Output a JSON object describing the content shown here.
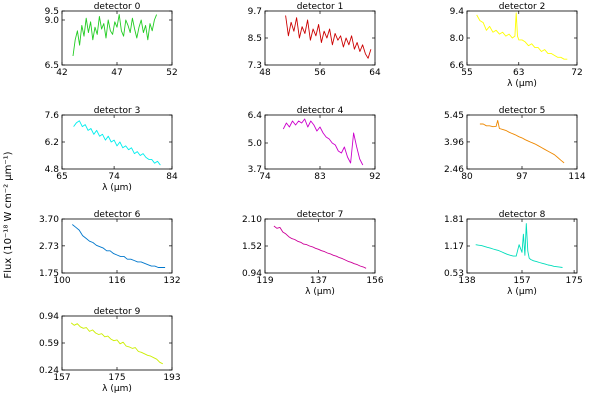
{
  "figure": {
    "ylabel": "Flux (10⁻¹⁸ W cm⁻² µm⁻¹)"
  },
  "chart_data": [
    {
      "type": "line",
      "title": "detector 0",
      "xlabel": "",
      "xlim": [
        42,
        52
      ],
      "ylim": [
        6.5,
        9.5
      ],
      "x_ticks": [
        "42",
        "47",
        "52"
      ],
      "y_ticks": [
        "6.5",
        "9.0",
        "9.5"
      ],
      "grid": false,
      "color": "#22cc22",
      "series": [
        {
          "x": [
            43.0,
            43.2,
            43.4,
            43.6,
            43.8,
            44.0,
            44.2,
            44.4,
            44.6,
            44.8,
            45.0,
            45.2,
            45.4,
            45.6,
            45.8,
            46.0,
            46.2,
            46.4,
            46.6,
            46.8,
            47.0,
            47.2,
            47.4,
            47.6,
            47.8,
            48.0,
            48.2,
            48.4,
            48.6,
            48.8,
            49.0,
            49.2,
            49.4,
            49.6,
            49.8,
            50.0,
            50.2,
            50.4,
            50.6
          ],
          "y": [
            7.0,
            7.9,
            8.4,
            7.6,
            8.7,
            8.1,
            9.1,
            8.3,
            8.9,
            7.9,
            8.6,
            8.2,
            9.2,
            8.5,
            8.8,
            8.0,
            9.0,
            8.4,
            8.2,
            8.9,
            8.6,
            9.3,
            8.4,
            8.1,
            9.0,
            8.7,
            8.3,
            9.1,
            8.5,
            8.0,
            8.6,
            9.0,
            8.3,
            8.7,
            7.9,
            8.8,
            8.4,
            9.0,
            9.3
          ]
        }
      ]
    },
    {
      "type": "line",
      "title": "detector 1",
      "xlabel": "",
      "xlim": [
        48,
        64
      ],
      "ylim": [
        7.3,
        9.7
      ],
      "x_ticks": [
        "48",
        "56",
        "64"
      ],
      "y_ticks": [
        "7.3",
        "8.5",
        "9.7"
      ],
      "grid": false,
      "color": "#cc0000",
      "series": [
        {
          "x": [
            51.0,
            51.4,
            51.8,
            52.2,
            52.6,
            53.0,
            53.4,
            53.8,
            54.2,
            54.6,
            55.0,
            55.4,
            55.8,
            56.2,
            56.6,
            57.0,
            57.4,
            57.8,
            58.2,
            58.6,
            59.0,
            59.4,
            59.8,
            60.2,
            60.6,
            61.0,
            61.4,
            61.8,
            62.2,
            62.6,
            63.0,
            63.4
          ],
          "y": [
            9.5,
            8.6,
            9.2,
            8.8,
            9.4,
            8.5,
            9.0,
            8.7,
            9.3,
            8.4,
            8.9,
            8.6,
            9.1,
            8.3,
            8.8,
            8.5,
            8.9,
            8.2,
            8.7,
            8.4,
            8.6,
            8.1,
            8.5,
            8.2,
            8.6,
            8.0,
            8.3,
            7.9,
            8.2,
            7.8,
            7.6,
            8.0
          ]
        }
      ]
    },
    {
      "type": "line",
      "title": "detector 2",
      "xlabel": "λ (µm)",
      "xlim": [
        55,
        72
      ],
      "ylim": [
        6.6,
        9.4
      ],
      "x_ticks": [
        "55",
        "63",
        "72"
      ],
      "y_ticks": [
        "6.6",
        "8.0",
        "9.4"
      ],
      "grid": false,
      "color": "#ffff00",
      "series": [
        {
          "x": [
            56.5,
            57.0,
            57.5,
            58.0,
            58.5,
            59.0,
            59.5,
            60.0,
            60.5,
            61.0,
            61.5,
            62.0,
            62.4,
            62.6,
            62.8,
            63.0,
            63.5,
            64.0,
            64.5,
            65.0,
            65.5,
            66.0,
            66.5,
            67.0,
            67.5,
            68.0,
            68.5,
            69.0,
            69.5,
            70.0,
            70.5
          ],
          "y": [
            9.2,
            8.9,
            8.8,
            8.4,
            8.6,
            8.3,
            8.4,
            8.2,
            8.3,
            8.1,
            8.2,
            8.0,
            8.1,
            9.3,
            8.1,
            7.9,
            7.9,
            7.8,
            7.6,
            7.7,
            7.5,
            7.5,
            7.3,
            7.4,
            7.2,
            7.2,
            7.1,
            7.0,
            7.0,
            6.9,
            6.9
          ]
        }
      ]
    },
    {
      "type": "line",
      "title": "detector 3",
      "xlabel": "λ (µm)",
      "xlim": [
        65,
        84
      ],
      "ylim": [
        4.8,
        7.6
      ],
      "x_ticks": [
        "65",
        "74",
        "84"
      ],
      "y_ticks": [
        "4.8",
        "6.2",
        "7.6"
      ],
      "grid": false,
      "color": "#00eeee",
      "series": [
        {
          "x": [
            67.0,
            67.5,
            68.0,
            68.5,
            69.0,
            69.5,
            70.0,
            70.5,
            71.0,
            71.5,
            72.0,
            72.5,
            73.0,
            73.5,
            74.0,
            74.5,
            75.0,
            75.5,
            76.0,
            76.5,
            77.0,
            77.5,
            78.0,
            78.5,
            79.0,
            79.5,
            80.0,
            80.5,
            81.0,
            81.5,
            82.0
          ],
          "y": [
            7.0,
            7.2,
            7.3,
            7.0,
            7.1,
            6.8,
            6.9,
            6.6,
            6.8,
            6.5,
            6.6,
            6.3,
            6.5,
            6.2,
            6.3,
            6.0,
            6.2,
            5.9,
            6.0,
            5.8,
            5.9,
            5.6,
            5.7,
            5.5,
            5.6,
            5.4,
            5.3,
            5.3,
            5.1,
            5.2,
            5.0
          ]
        }
      ]
    },
    {
      "type": "line",
      "title": "detector 4",
      "xlabel": "",
      "xlim": [
        74,
        92
      ],
      "ylim": [
        3.7,
        6.4
      ],
      "x_ticks": [
        "74",
        "83",
        "92"
      ],
      "y_ticks": [
        "3.7",
        "5.0",
        "6.4"
      ],
      "grid": false,
      "color": "#cc00cc",
      "series": [
        {
          "x": [
            77.0,
            77.5,
            78.0,
            78.5,
            79.0,
            79.5,
            80.0,
            80.5,
            81.0,
            81.5,
            82.0,
            82.5,
            83.0,
            83.5,
            84.0,
            84.5,
            85.0,
            85.5,
            86.0,
            86.5,
            87.0,
            87.5,
            88.0,
            88.5,
            89.0,
            89.5,
            90.0
          ],
          "y": [
            5.7,
            6.0,
            5.8,
            6.1,
            5.9,
            6.1,
            6.0,
            6.2,
            5.8,
            6.1,
            5.9,
            5.6,
            5.8,
            5.5,
            5.3,
            5.2,
            5.0,
            4.9,
            4.6,
            4.5,
            4.8,
            4.3,
            4.0,
            5.5,
            4.8,
            4.2,
            3.9
          ]
        }
      ]
    },
    {
      "type": "line",
      "title": "detector 5",
      "xlabel": "",
      "xlim": [
        80,
        114
      ],
      "ylim": [
        2.46,
        5.45
      ],
      "x_ticks": [
        "80",
        "97",
        "114"
      ],
      "y_ticks": [
        "2.46",
        "3.96",
        "5.45"
      ],
      "grid": false,
      "color": "#ee8800",
      "series": [
        {
          "x": [
            84.0,
            85.0,
            86.0,
            87.0,
            88.0,
            89.0,
            89.5,
            90.0,
            91.0,
            92.0,
            93.0,
            94.0,
            95.0,
            96.0,
            97.0,
            98.0,
            99.0,
            100.0,
            101.0,
            102.0,
            103.0,
            104.0,
            105.0,
            106.0,
            107.0,
            108.0,
            109.0,
            110.0
          ],
          "y": [
            4.95,
            4.95,
            4.85,
            4.85,
            4.8,
            4.82,
            5.15,
            4.7,
            4.65,
            4.6,
            4.5,
            4.42,
            4.35,
            4.25,
            4.18,
            4.08,
            4.0,
            3.92,
            3.85,
            3.75,
            3.65,
            3.55,
            3.45,
            3.35,
            3.25,
            3.1,
            2.95,
            2.8
          ]
        }
      ]
    },
    {
      "type": "line",
      "title": "detector 6",
      "xlabel": "",
      "xlim": [
        100,
        132
      ],
      "ylim": [
        1.75,
        3.7
      ],
      "x_ticks": [
        "100",
        "116",
        "132"
      ],
      "y_ticks": [
        "1.75",
        "2.73",
        "3.70"
      ],
      "grid": false,
      "color": "#0077cc",
      "series": [
        {
          "x": [
            103.0,
            104.0,
            105.0,
            106.0,
            107.0,
            108.0,
            109.0,
            110.0,
            111.0,
            112.0,
            113.0,
            114.0,
            115.0,
            116.0,
            117.0,
            118.0,
            119.0,
            120.0,
            121.0,
            122.0,
            123.0,
            124.0,
            125.0,
            126.0,
            127.0,
            128.0,
            129.0,
            130.0
          ],
          "y": [
            3.5,
            3.4,
            3.3,
            3.1,
            3.0,
            2.9,
            2.85,
            2.75,
            2.7,
            2.65,
            2.55,
            2.55,
            2.45,
            2.4,
            2.35,
            2.35,
            2.25,
            2.25,
            2.2,
            2.15,
            2.15,
            2.1,
            2.05,
            2.0,
            2.0,
            1.95,
            1.95,
            1.95
          ]
        }
      ]
    },
    {
      "type": "line",
      "title": "detector 7",
      "xlabel": "λ (µm)",
      "xlim": [
        119,
        156
      ],
      "ylim": [
        0.94,
        2.1
      ],
      "x_ticks": [
        "119",
        "137",
        "156"
      ],
      "y_ticks": [
        "0.94",
        "1.52",
        "2.10"
      ],
      "grid": false,
      "color": "#cc0099",
      "series": [
        {
          "x": [
            122.0,
            123.0,
            124.0,
            125.0,
            126.0,
            127.0,
            128.0,
            129.0,
            130.0,
            131.0,
            132.0,
            133.0,
            134.0,
            135.0,
            136.0,
            137.0,
            138.0,
            139.0,
            140.0,
            141.0,
            142.0,
            143.0,
            144.0,
            145.0,
            146.0,
            147.0,
            148.0,
            149.0,
            150.0,
            151.0,
            152.0,
            153.0
          ],
          "y": [
            1.95,
            1.9,
            1.92,
            1.82,
            1.78,
            1.72,
            1.68,
            1.66,
            1.62,
            1.6,
            1.56,
            1.55,
            1.52,
            1.5,
            1.47,
            1.45,
            1.42,
            1.4,
            1.37,
            1.35,
            1.32,
            1.3,
            1.27,
            1.25,
            1.22,
            1.19,
            1.17,
            1.14,
            1.12,
            1.09,
            1.07,
            1.04
          ]
        }
      ]
    },
    {
      "type": "line",
      "title": "detector 8",
      "xlabel": "λ (µm)",
      "xlim": [
        138,
        176
      ],
      "ylim": [
        0.53,
        1.81
      ],
      "x_ticks": [
        "138",
        "157",
        "175"
      ],
      "y_ticks": [
        "0.53",
        "1.17",
        "1.81"
      ],
      "grid": false,
      "color": "#00ddbb",
      "series": [
        {
          "x": [
            141.0,
            142.0,
            143.0,
            144.0,
            145.0,
            146.0,
            147.0,
            148.0,
            149.0,
            150.0,
            151.0,
            152.0,
            153.0,
            154.0,
            155.0,
            156.0,
            157.0,
            157.5,
            158.0,
            158.5,
            159.0,
            159.5,
            160.0,
            161.0,
            162.0,
            163.0,
            164.0,
            165.0,
            166.0,
            167.0,
            168.0,
            169.0,
            170.0,
            171.0
          ],
          "y": [
            1.2,
            1.19,
            1.18,
            1.16,
            1.14,
            1.12,
            1.1,
            1.08,
            1.06,
            1.03,
            1.0,
            0.97,
            0.95,
            0.93,
            0.93,
            1.2,
            1.02,
            1.45,
            0.95,
            1.7,
            1.05,
            0.88,
            0.85,
            0.82,
            0.8,
            0.78,
            0.76,
            0.74,
            0.72,
            0.71,
            0.69,
            0.68,
            0.67,
            0.66
          ]
        }
      ]
    },
    {
      "type": "line",
      "title": "detector 9",
      "xlabel": "λ (µm)",
      "xlim": [
        157,
        193
      ],
      "ylim": [
        0.24,
        0.94
      ],
      "x_ticks": [
        "157",
        "175",
        "193"
      ],
      "y_ticks": [
        "0.24",
        "0.59",
        "0.94"
      ],
      "grid": false,
      "color": "#ccee00",
      "series": [
        {
          "x": [
            160.0,
            161.0,
            162.0,
            163.0,
            164.0,
            165.0,
            166.0,
            167.0,
            168.0,
            169.0,
            170.0,
            171.0,
            172.0,
            173.0,
            174.0,
            175.0,
            176.0,
            177.0,
            178.0,
            179.0,
            180.0,
            181.0,
            182.0,
            183.0,
            184.0,
            185.0,
            186.0,
            187.0,
            188.0,
            189.0,
            190.0
          ],
          "y": [
            0.85,
            0.82,
            0.84,
            0.8,
            0.78,
            0.79,
            0.74,
            0.76,
            0.72,
            0.7,
            0.71,
            0.67,
            0.68,
            0.64,
            0.62,
            0.63,
            0.58,
            0.6,
            0.55,
            0.54,
            0.52,
            0.53,
            0.48,
            0.47,
            0.45,
            0.43,
            0.42,
            0.4,
            0.38,
            0.34,
            0.32
          ]
        }
      ]
    }
  ]
}
